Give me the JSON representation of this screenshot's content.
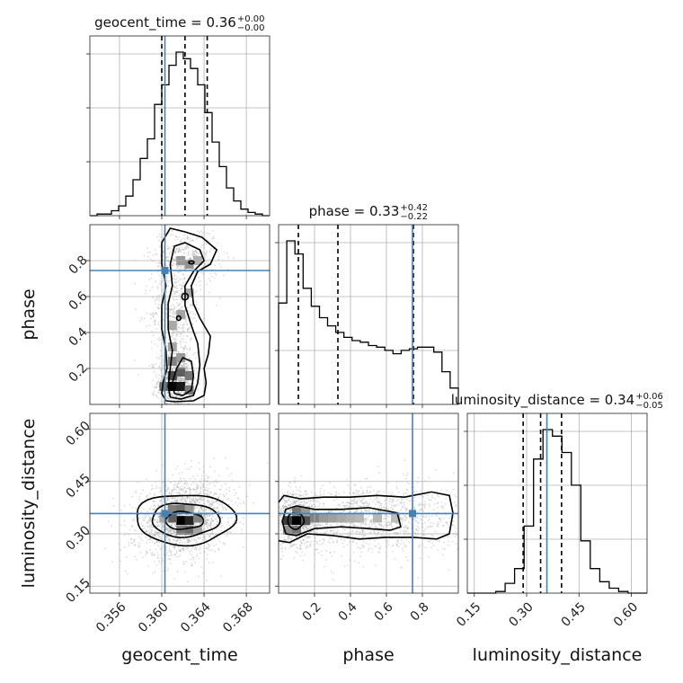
{
  "chart_data": {
    "type": "corner",
    "parameters": [
      "geocent_time",
      "phase",
      "luminosity_distance"
    ],
    "truths": {
      "geocent_time": 0.3603,
      "phase": 0.745,
      "luminosity_distance": 0.358
    },
    "truth_color": "#4682b4",
    "axes": {
      "geocent_time": {
        "range": [
          0.3532,
          0.3702
        ],
        "ticks": [
          0.356,
          0.36,
          0.364,
          0.368
        ],
        "tick_labels": [
          "0.356",
          "0.360",
          "0.364",
          "0.368"
        ]
      },
      "phase": {
        "range": [
          0.0,
          1.0
        ],
        "ticks": [
          0.2,
          0.4,
          0.6,
          0.8
        ],
        "tick_labels": [
          "0.2",
          "0.4",
          "0.6",
          "0.8"
        ]
      },
      "luminosity_distance": {
        "range": [
          0.13,
          0.645
        ],
        "ticks": [
          0.15,
          0.3,
          0.45,
          0.6
        ],
        "tick_labels": [
          "0.15",
          "0.30",
          "0.45",
          "0.60"
        ]
      }
    },
    "titles": [
      {
        "param": "geocent_time",
        "main": "geocent_time = 0.36",
        "sup": "+0.00",
        "sub": "−0.00"
      },
      {
        "param": "phase",
        "main": "phase = 0.33",
        "sup": "+0.42",
        "sub": "−0.22"
      },
      {
        "param": "luminosity_distance",
        "main": "luminosity_distance = 0.34",
        "sup": "+0.06",
        "sub": "−0.05"
      }
    ],
    "quantiles": {
      "geocent_time": [
        0.36,
        0.3622,
        0.3643
      ],
      "phase": [
        0.11,
        0.33,
        0.75
      ],
      "luminosity_distance": [
        0.29,
        0.34,
        0.4
      ]
    },
    "histograms": {
      "geocent_time": {
        "bins": [
          0.3532,
          0.3702
        ],
        "counts": [
          0,
          1,
          1,
          3,
          6,
          12,
          22,
          35,
          47,
          68,
          80,
          92,
          100,
          96,
          90,
          80,
          63,
          45,
          30,
          17,
          9,
          4,
          2,
          1,
          0
        ]
      },
      "phase": {
        "bins": [
          0.0,
          1.0
        ],
        "counts": [
          62,
          100,
          92,
          71,
          60,
          53,
          48,
          44,
          41,
          39,
          38,
          36,
          35,
          33,
          31,
          33,
          34,
          35,
          35,
          32,
          20,
          10
        ]
      },
      "luminosity_distance": {
        "bins": [
          0.13,
          0.645
        ],
        "counts": [
          0,
          0,
          0,
          1,
          6,
          15,
          41,
          82,
          100,
          96,
          86,
          66,
          32,
          15,
          7,
          3,
          1,
          0,
          0
        ]
      }
    },
    "density_2d": [
      {
        "x": "geocent_time",
        "y": "phase",
        "peaks": [
          {
            "x": 0.3614,
            "y": 0.1,
            "weight": 1.0
          },
          {
            "x": 0.3614,
            "y": 0.55,
            "weight": 0.45
          },
          {
            "x": 0.3624,
            "y": 0.78,
            "weight": 0.5
          }
        ]
      },
      {
        "x": "geocent_time",
        "y": "luminosity_distance",
        "peaks": [
          {
            "x": 0.3622,
            "y": 0.338,
            "weight": 1.0
          }
        ]
      },
      {
        "x": "phase",
        "y": "luminosity_distance",
        "peaks": [
          {
            "x": 0.1,
            "y": 0.338,
            "weight": 1.0
          },
          {
            "x": 0.5,
            "y": 0.345,
            "weight": 0.4
          }
        ]
      }
    ]
  }
}
